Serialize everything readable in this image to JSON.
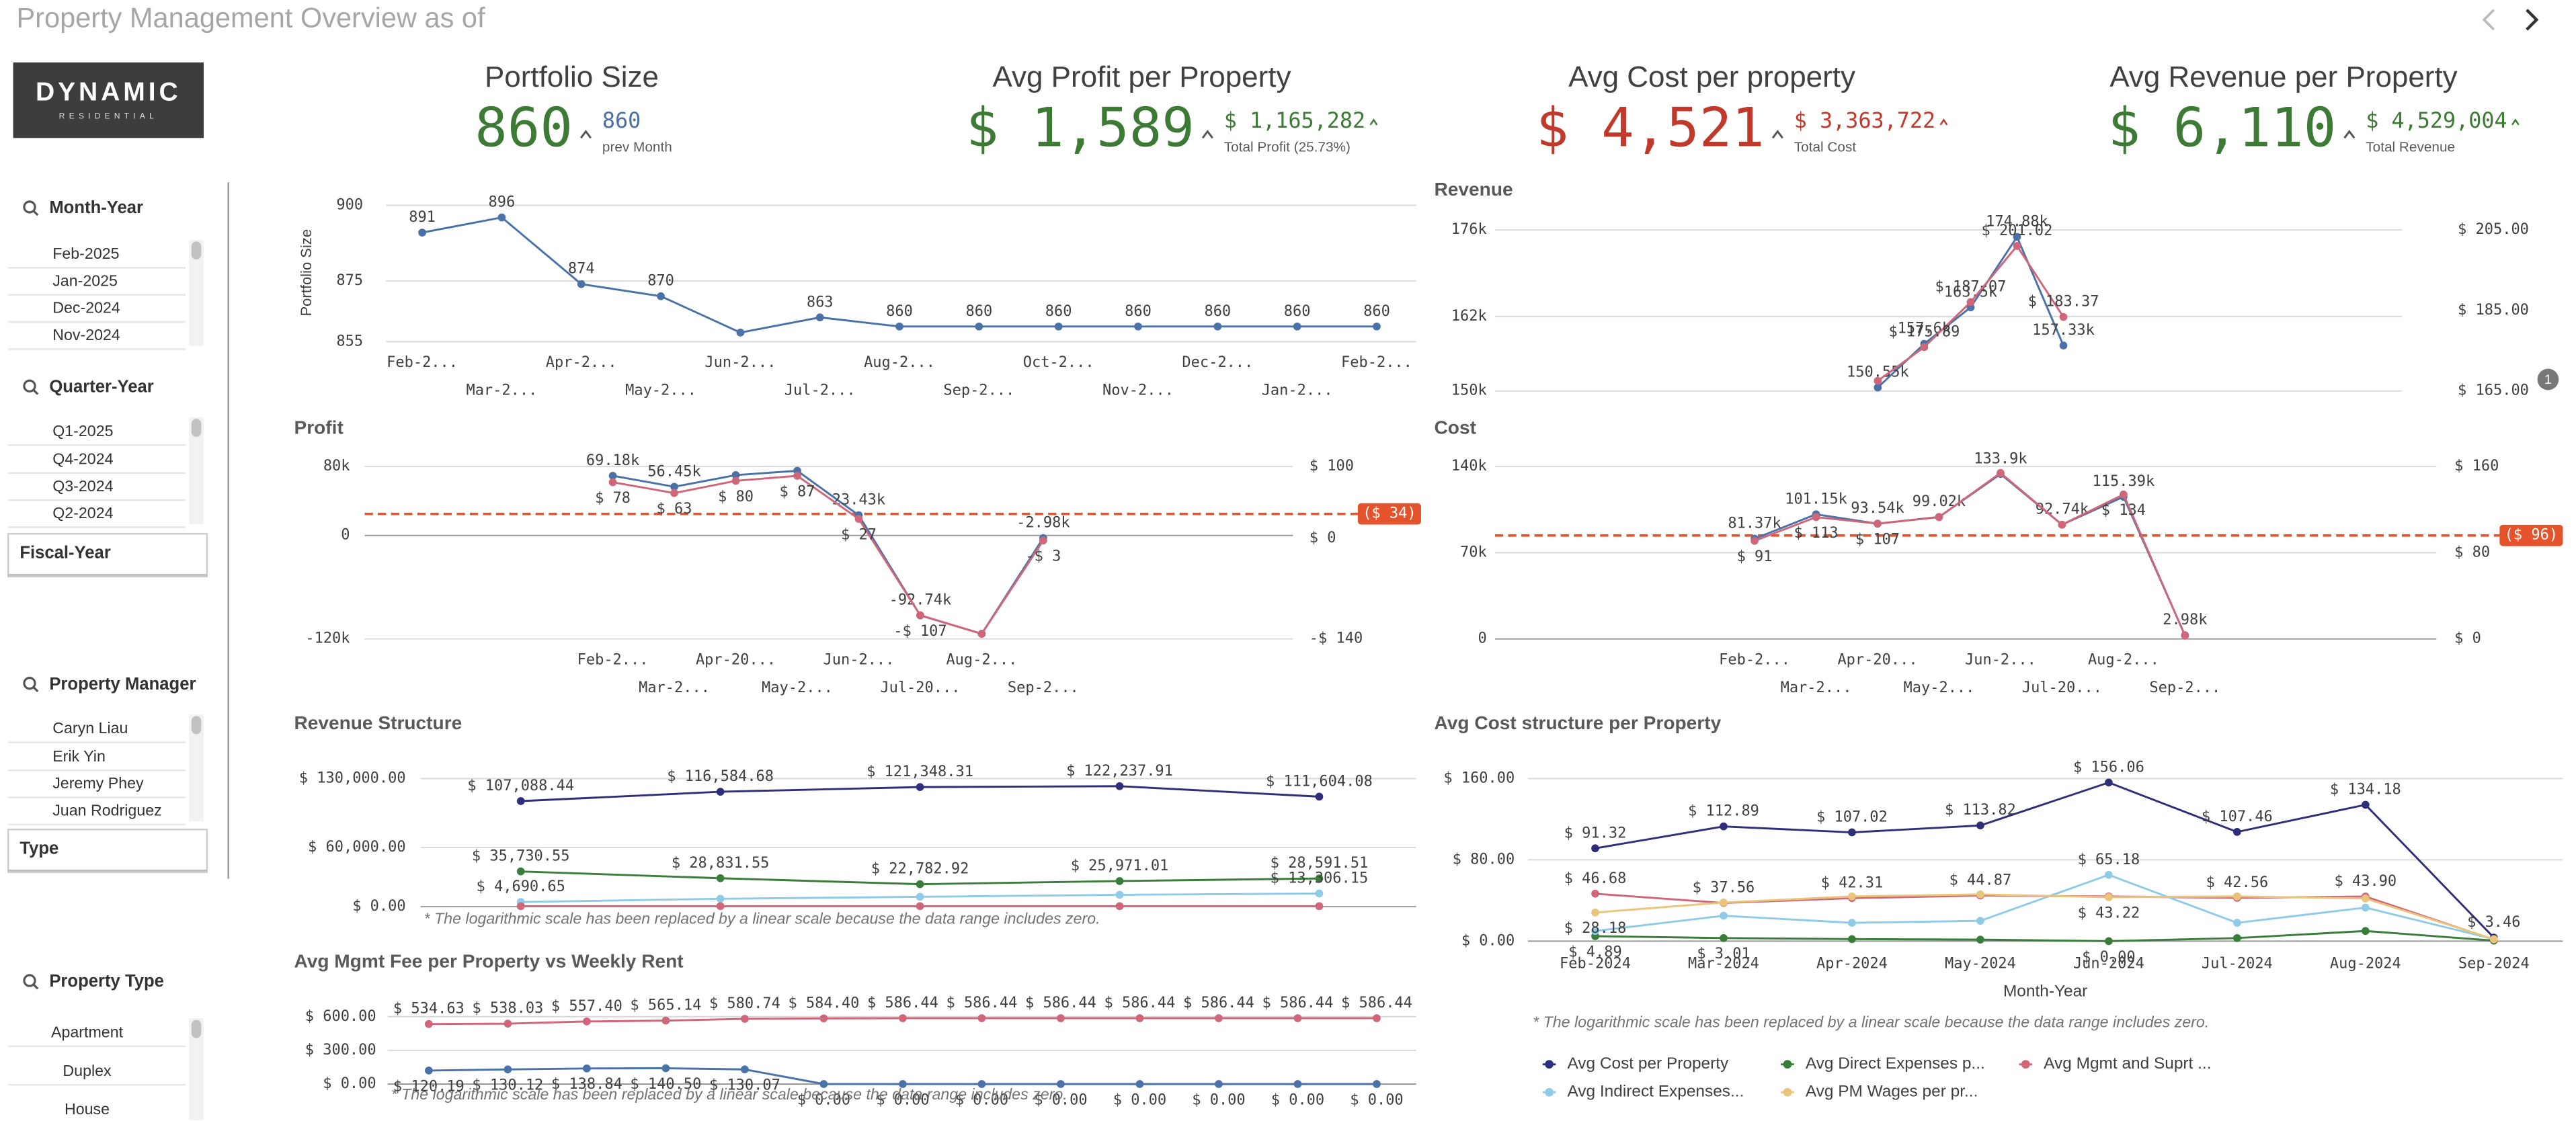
{
  "header": {
    "title": "Property Management Overview as of"
  },
  "logo": {
    "name": "DYNAMIC",
    "tagline": "RESIDENTIAL"
  },
  "badge": "1",
  "filters": [
    {
      "title": "Month-Year",
      "items": [
        "Feb-2025",
        "Jan-2025",
        "Dec-2024",
        "Nov-2024"
      ]
    },
    {
      "title": "Quarter-Year",
      "items": [
        "Q1-2025",
        "Q4-2024",
        "Q3-2024",
        "Q2-2024"
      ]
    },
    {
      "title": "Fiscal-Year"
    },
    {
      "title": "Property Manager",
      "items": [
        "Caryn Liau",
        "Erik Yin",
        "Jeremy Phey",
        "Juan Rodriguez"
      ]
    },
    {
      "title": "Type"
    },
    {
      "title": "Property Type",
      "items": [
        "Apartment",
        "Duplex",
        "House"
      ]
    }
  ],
  "kpis": [
    {
      "title": "Portfolio Size",
      "value": "860",
      "compare": "860",
      "compare_label": "prev Month",
      "color": "#3d7a35",
      "compare_color": "#4a6fa5"
    },
    {
      "title": "Avg Profit per Property",
      "value": "$ 1,589",
      "compare": "$ 1,165,282",
      "compare_label": "Total Profit (25.73%)",
      "color": "#3d7a35",
      "compare_color": "#3d7a35"
    },
    {
      "title": "Avg Cost per property",
      "value": "$ 4,521",
      "compare": "$ 3,363,722",
      "compare_label": "Total Cost",
      "color": "#c0392b",
      "compare_color": "#c0392b"
    },
    {
      "title": "Avg Revenue per Property",
      "value": "$ 6,110",
      "compare": "$ 4,529,004",
      "compare_label": "Total Revenue",
      "color": "#3d7a35",
      "compare_color": "#3d7a35"
    }
  ],
  "chart_data": [
    {
      "type": "line",
      "y_label": "Portfolio Size",
      "grid": true,
      "categories": [
        "Feb-2...",
        "Mar-2...",
        "Apr-2...",
        "May-2...",
        "Jun-2...",
        "Jul-2...",
        "Aug-2...",
        "Sep-2...",
        "Oct-2...",
        "Nov-2...",
        "Dec-2...",
        "Jan-2...",
        "Feb-2..."
      ],
      "ylim": [
        855,
        900
      ],
      "yticks": [
        855,
        875,
        900
      ],
      "series": [
        {
          "color": "#4a72a8",
          "values": [
            891,
            896,
            874,
            870,
            858,
            863,
            860,
            860,
            860,
            860,
            860,
            860,
            860
          ],
          "value_labels": [
            "891",
            "896",
            "874",
            "870",
            null,
            "863",
            "860",
            "860",
            "860",
            "860",
            "860",
            "860",
            "860"
          ]
        }
      ]
    },
    {
      "type": "line",
      "title": "Revenue",
      "grid": true,
      "categories": [
        null,
        null,
        null,
        null,
        null
      ],
      "ylim": [
        150000,
        176000
      ],
      "yticks": [
        {
          "value": 150000,
          "label": "150k"
        },
        {
          "value": 162000,
          "label": "162k"
        },
        {
          "value": 176000,
          "label": "176k"
        }
      ],
      "y2lim": [
        165,
        205
      ],
      "y2ticks": [
        {
          "value": 165,
          "label": "$ 165.00"
        },
        {
          "value": 185,
          "label": "$ 185.00"
        },
        {
          "value": 205,
          "label": "$ 205.00"
        }
      ],
      "series": [
        {
          "color": "#4a72a8",
          "values": [
            150550,
            157600,
            163500,
            174880,
            157330
          ],
          "value_labels": [
            "150.55k",
            "157.6k",
            "163.5k",
            "174.88k",
            "157.33k"
          ]
        },
        {
          "color": "#cf6679",
          "axis": "y2",
          "values": [
            167.5,
            175.89,
            187.07,
            201.02,
            183.37
          ],
          "value_labels": [
            null,
            "$ 175.89",
            "$ 187.07",
            "$ 201.02",
            "$ 183.37"
          ]
        }
      ]
    },
    {
      "type": "line",
      "title": "Profit",
      "grid": true,
      "categories": [
        "Feb-2...",
        "Mar-2...",
        "Apr-20...",
        "May-2...",
        "Jun-2...",
        "Jul-20...",
        "Aug-2...",
        "Sep-2..."
      ],
      "ylim": [
        -120000,
        80000
      ],
      "yticks": [
        {
          "value": -120000,
          "label": "-120k"
        },
        0,
        {
          "value": 80000,
          "label": "80k"
        }
      ],
      "y2lim": [
        -140,
        100
      ],
      "y2ticks": [
        {
          "value": -140,
          "label": "-$ 140"
        },
        {
          "value": 0,
          "label": "$ 0"
        },
        {
          "value": 100,
          "label": "$ 100"
        }
      ],
      "reference": {
        "value": 34,
        "label": "($ 34)",
        "axis": "y2",
        "color": "#e5532d"
      },
      "series": [
        {
          "color": "#4a72a8",
          "values": [
            69180,
            56450,
            70000,
            75000,
            23430,
            -92740,
            -114000,
            -2980
          ],
          "value_labels": [
            "69.18k",
            "56.45k",
            null,
            null,
            "23.43k",
            "-92.74k",
            null,
            "-2.98k"
          ]
        },
        {
          "color": "#cf6679",
          "axis": "y2",
          "values": [
            78,
            63,
            80,
            87,
            27,
            -107,
            -133,
            -3
          ],
          "value_labels": [
            "$ 78",
            "$ 63",
            "$ 80",
            "$ 87",
            "$ 27",
            "-$ 107",
            null,
            "-$ 3"
          ]
        }
      ]
    },
    {
      "type": "line",
      "title": "Cost",
      "grid": true,
      "categories": [
        "Feb-2...",
        "Mar-2...",
        "Apr-20...",
        "May-2...",
        "Jun-2...",
        "Jul-20...",
        "Aug-2...",
        "Sep-2..."
      ],
      "ylim": [
        0,
        140000
      ],
      "yticks": [
        0,
        {
          "value": 70000,
          "label": "70k"
        },
        {
          "value": 140000,
          "label": "140k"
        }
      ],
      "y2lim": [
        0,
        160
      ],
      "y2ticks": [
        {
          "value": 0,
          "label": "$ 0"
        },
        {
          "value": 80,
          "label": "$ 80"
        },
        {
          "value": 160,
          "label": "$ 160"
        }
      ],
      "reference": {
        "value": 96,
        "label": "($ 96)",
        "axis": "y2",
        "color": "#e5532d"
      },
      "series": [
        {
          "color": "#4a72a8",
          "values": [
            81370,
            101150,
            93540,
            99020,
            133900,
            92740,
            115390,
            2980
          ],
          "value_labels": [
            "81.37k",
            "101.15k",
            "93.54k",
            "99.02k",
            "133.9k",
            "92.74k",
            "115.39k",
            "2.98k"
          ]
        },
        {
          "color": "#cf6679",
          "axis": "y2",
          "values": [
            91,
            113,
            107,
            113,
            154,
            106,
            134,
            3
          ],
          "value_labels": [
            "$ 91",
            "$ 113",
            "$ 107",
            null,
            null,
            null,
            "$ 134",
            null
          ]
        }
      ]
    },
    {
      "type": "line",
      "title": "Revenue Structure",
      "grid": true,
      "categories": [
        null,
        null,
        null,
        null,
        null
      ],
      "ylim": [
        0,
        130000
      ],
      "yticks": [
        {
          "value": 0,
          "label": "$ 0.00"
        },
        {
          "value": 60000,
          "label": "$ 60,000.00"
        },
        {
          "value": 130000,
          "label": "$ 130,000.00"
        }
      ],
      "annotation": "* The logarithmic scale has been replaced by a linear scale because the data range includes zero.",
      "series": [
        {
          "color": "#2e2e7a",
          "values": [
            107088.44,
            116584.68,
            121348.31,
            122237.91,
            111604.08
          ],
          "value_labels": [
            "$ 107,088.44",
            "$ 116,584.68",
            "$ 121,348.31",
            "$ 122,237.91",
            "$ 111,604.08"
          ]
        },
        {
          "color": "#3a7d3a",
          "values": [
            35730.55,
            28831.55,
            22782.92,
            25971.01,
            28591.51
          ],
          "value_labels": [
            "$ 35,730.55",
            "$ 28,831.55",
            "$ 22,782.92",
            "$ 25,971.01",
            "$ 28,591.51"
          ]
        },
        {
          "color": "#8ecbe6",
          "values": [
            4690.65,
            8000,
            10000,
            12000,
            13306.15
          ],
          "value_labels": [
            "$ 4,690.65",
            null,
            null,
            null,
            "$ 13,306.15"
          ]
        },
        {
          "color": "#cf6679",
          "values": [
            500,
            500,
            500,
            500,
            500
          ]
        }
      ]
    },
    {
      "type": "line",
      "title": "Avg Mgmt Fee per Property vs Weekly Rent",
      "grid": true,
      "categories": [
        null,
        null,
        null,
        null,
        null,
        null,
        null,
        null,
        null,
        null,
        null,
        null,
        null
      ],
      "ylim": [
        0,
        600
      ],
      "yticks": [
        {
          "value": 0,
          "label": "$ 0.00"
        },
        {
          "value": 300,
          "label": "$ 300.00"
        },
        {
          "value": 600,
          "label": "$ 600.00"
        }
      ],
      "annotation": "* The logarithmic scale has been replaced by a linear scale because the data range includes zero.",
      "series": [
        {
          "color": "#cf6679",
          "values": [
            534.63,
            538.03,
            557.4,
            565.14,
            580.74,
            584.4,
            586.44,
            586.44,
            586.44,
            586.44,
            586.44,
            586.44,
            586.44
          ],
          "value_labels": [
            "$ 534.63",
            "$ 538.03",
            "$ 557.40",
            "$ 565.14",
            "$ 580.74",
            "$ 584.40",
            "$ 586.44",
            "$ 586.44",
            "$ 586.44",
            "$ 586.44",
            "$ 586.44",
            "$ 586.44",
            "$ 586.44"
          ]
        },
        {
          "color": "#4a72a8",
          "values": [
            120.19,
            130.12,
            138.84,
            140.5,
            130.07,
            0,
            0,
            0,
            0,
            0,
            0,
            0,
            0
          ],
          "value_labels": [
            "$ 120.19",
            "$ 130.12",
            "$ 138.84",
            "$ 140.50",
            "$ 130.07",
            "$ 0.00",
            "$ 0.00",
            "$ 0.00",
            "$ 0.00",
            "$ 0.00",
            "$ 0.00",
            "$ 0.00",
            "$ 0.00"
          ]
        }
      ]
    },
    {
      "type": "line",
      "title": "Avg Cost structure per Property",
      "grid": true,
      "x_label": "Month-Year",
      "legend": "bottom",
      "categories": [
        "Feb-2024",
        "Mar-2024",
        "Apr-2024",
        "May-2024",
        "Jun-2024",
        "Jul-2024",
        "Aug-2024",
        "Sep-2024"
      ],
      "ylim": [
        0,
        160
      ],
      "yticks": [
        {
          "value": 0,
          "label": "$ 0.00"
        },
        {
          "value": 80,
          "label": "$ 80.00"
        },
        {
          "value": 160,
          "label": "$ 160.00"
        }
      ],
      "annotation": "* The logarithmic scale has been replaced by a linear scale because the data range includes zero.",
      "series": [
        {
          "name": "Avg Cost per Property",
          "color": "#2e2e7a",
          "values": [
            91.32,
            112.89,
            107.02,
            113.82,
            156.06,
            107.46,
            134.18,
            3.46
          ],
          "value_labels": [
            "$ 91.32",
            "$ 112.89",
            "$ 107.02",
            "$ 113.82",
            "$ 156.06",
            "$ 107.46",
            "$ 134.18",
            "$ 3.46"
          ]
        },
        {
          "name": "Avg Direct Expenses p...",
          "color": "#3a7d3a",
          "values": [
            4.89,
            3.01,
            2,
            1.5,
            0,
            3,
            10,
            0.5
          ],
          "value_labels": [
            "$ 4.89",
            "$ 3.01",
            null,
            null,
            "$ 0.00",
            null,
            null,
            null
          ]
        },
        {
          "name": "Avg Mgmt and Suprt ...",
          "color": "#cf6679",
          "values": [
            46.68,
            37.56,
            42.31,
            44.87,
            44,
            42.56,
            43.9,
            1.5
          ],
          "value_labels": [
            "$ 46.68",
            "$ 37.56",
            "$ 42.31",
            "$ 44.87",
            null,
            "$ 42.56",
            "$ 43.90",
            null
          ]
        },
        {
          "name": "Avg Indirect Expenses...",
          "color": "#8ecbe6",
          "values": [
            10,
            25,
            18,
            20,
            65.18,
            18,
            33,
            2
          ],
          "value_labels": [
            null,
            null,
            null,
            null,
            "$ 65.18",
            null,
            null,
            null
          ]
        },
        {
          "name": "Avg PM Wages per pr...",
          "color": "#e8c57a",
          "values": [
            28.18,
            38,
            44,
            46,
            43.22,
            44,
            42,
            2
          ],
          "value_labels": [
            "$ 28.18",
            null,
            null,
            null,
            "$ 43.22",
            null,
            null,
            null
          ]
        }
      ]
    }
  ]
}
